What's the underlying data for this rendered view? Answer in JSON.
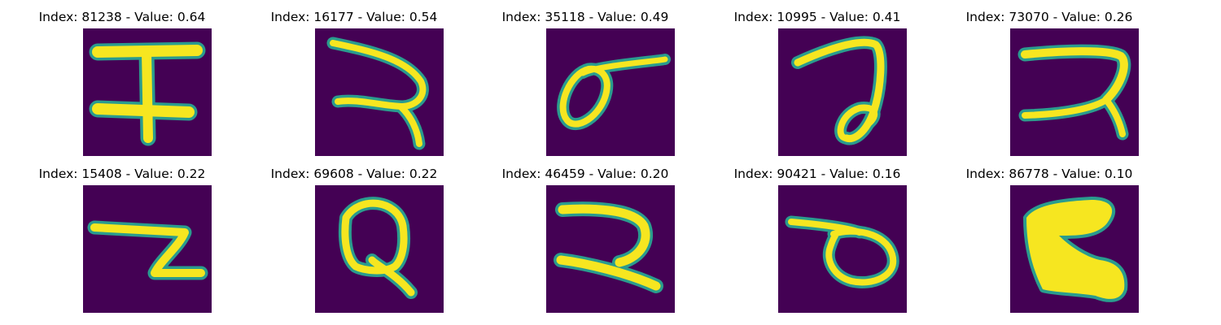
{
  "panels": [
    {
      "title": "Index: 81238 - Value: 0.64",
      "glyph": "glyph-h-icon"
    },
    {
      "title": "Index: 16177 - Value: 0.54",
      "glyph": "glyph-curl-icon"
    },
    {
      "title": "Index: 35118 - Value: 0.49",
      "glyph": "glyph-loop-flag-icon"
    },
    {
      "title": "Index: 10995 - Value: 0.41",
      "glyph": "glyph-hook-loop-icon"
    },
    {
      "title": "Index: 73070 - Value: 0.26",
      "glyph": "glyph-double-bar-icon"
    },
    {
      "title": "Index: 15408 - Value: 0.22",
      "glyph": "glyph-z-icon"
    },
    {
      "title": "Index: 69608 - Value: 0.22",
      "glyph": "glyph-q-icon"
    },
    {
      "title": "Index: 46459 - Value: 0.20",
      "glyph": "glyph-reverse-c-icon"
    },
    {
      "title": "Index: 90421 - Value: 0.16",
      "glyph": "glyph-oval-tail-icon"
    },
    {
      "title": "Index: 86778 - Value: 0.10",
      "glyph": "glyph-bold-s-icon"
    }
  ],
  "colors": {
    "background": "#440154",
    "mid": "#2a9c8e",
    "high": "#f6e620"
  }
}
